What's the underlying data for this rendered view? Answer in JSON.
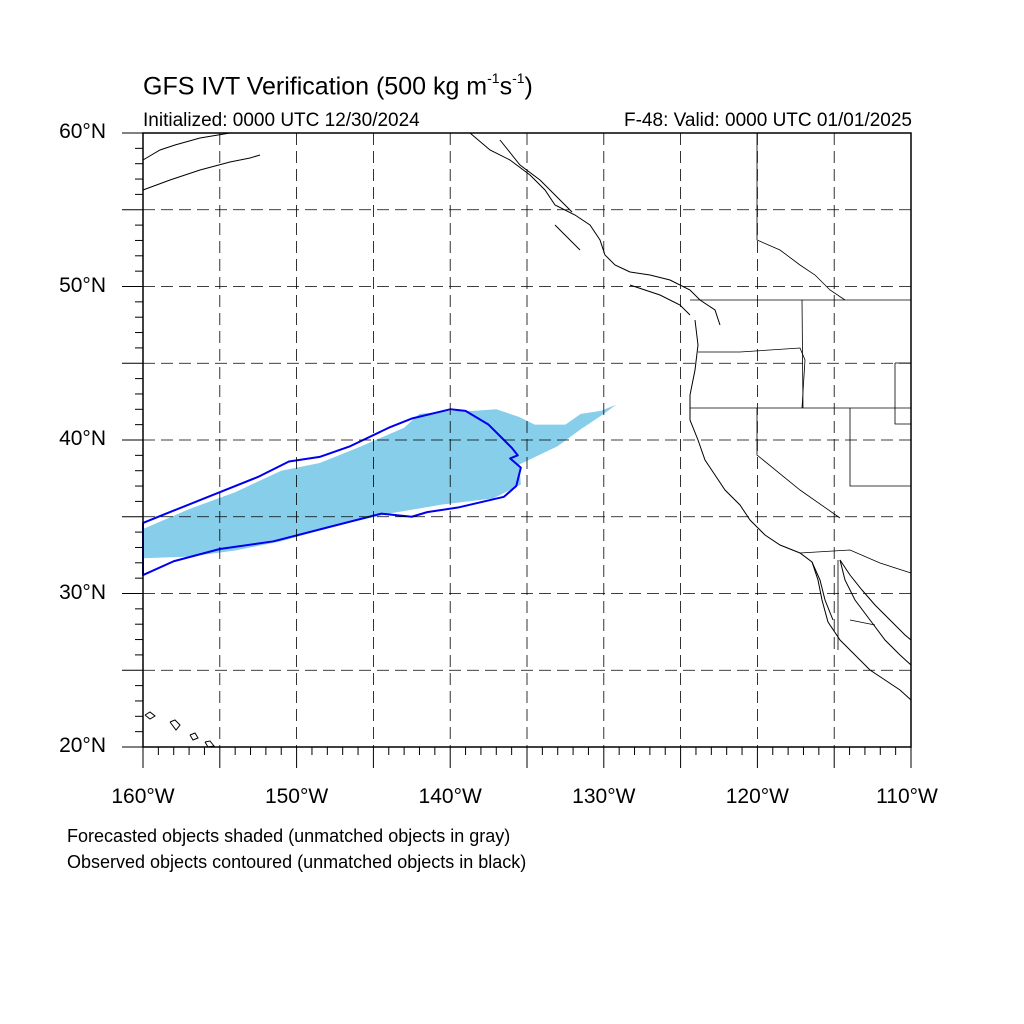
{
  "title": {
    "main": "GFS IVT Verification (500 kg m",
    "exp1": "-1",
    "mid": "s",
    "exp2": "-1",
    "end": ")"
  },
  "subtitle": {
    "initialized": "Initialized: 0000 UTC 12/30/2024",
    "valid": "F-48: Valid: 0000 UTC 01/01/2025"
  },
  "map": {
    "extent": {
      "lon_min": -160,
      "lon_max": -110,
      "lat_min": 20,
      "lat_max": 60
    },
    "lat_labels": [
      "60°N",
      "50°N",
      "40°N",
      "30°N",
      "20°N"
    ],
    "lon_labels": [
      "160°W",
      "150°W",
      "140°W",
      "130°W",
      "120°W",
      "110°W"
    ],
    "grid_lines_lat": [
      20,
      25,
      30,
      35,
      40,
      45,
      50,
      55,
      60
    ],
    "grid_lines_lon": [
      -160,
      -155,
      -150,
      -145,
      -140,
      -135,
      -130,
      -125,
      -120,
      -115,
      -110
    ],
    "forecast_object": {
      "color": "#87ceeb",
      "polygon_lonlat": [
        [
          -160,
          34.2
        ],
        [
          -157,
          35.5
        ],
        [
          -154,
          36.6
        ],
        [
          -151,
          38.0
        ],
        [
          -148.5,
          38.5
        ],
        [
          -146,
          39.5
        ],
        [
          -143,
          40.8
        ],
        [
          -142,
          41.7
        ],
        [
          -140,
          41.9
        ],
        [
          -138.5,
          41.9
        ],
        [
          -137,
          42.0
        ],
        [
          -135.5,
          41.5
        ],
        [
          -134.5,
          41.0
        ],
        [
          -132.5,
          41.0
        ],
        [
          -131.5,
          41.7
        ],
        [
          -130.2,
          41.9
        ],
        [
          -129.2,
          42.3
        ],
        [
          -130,
          41.7
        ],
        [
          -131.5,
          40.7
        ],
        [
          -133,
          39.6
        ],
        [
          -135.5,
          38.4
        ],
        [
          -135.4,
          37.1
        ],
        [
          -137.2,
          36.2
        ],
        [
          -140.5,
          35.8
        ],
        [
          -144,
          35.2
        ],
        [
          -147.5,
          34.4
        ],
        [
          -151,
          33.4
        ],
        [
          -154,
          32.8
        ],
        [
          -157,
          32.4
        ],
        [
          -160,
          32.3
        ]
      ]
    },
    "observed_object": {
      "color": "#0000ee",
      "polygon_lonlat": [
        [
          -160,
          34.6
        ],
        [
          -158,
          35.4
        ],
        [
          -155,
          36.6
        ],
        [
          -152.5,
          37.6
        ],
        [
          -150.5,
          38.6
        ],
        [
          -148.5,
          38.9
        ],
        [
          -146.5,
          39.6
        ],
        [
          -144,
          40.8
        ],
        [
          -142.5,
          41.4
        ],
        [
          -140,
          42.0
        ],
        [
          -139,
          41.9
        ],
        [
          -137.5,
          41.0
        ],
        [
          -136.5,
          40.0
        ],
        [
          -136,
          39.5
        ],
        [
          -135.6,
          39.0
        ],
        [
          -136.1,
          38.8
        ],
        [
          -135.4,
          38.2
        ],
        [
          -135.7,
          37.0
        ],
        [
          -136.5,
          36.3
        ],
        [
          -139.5,
          35.6
        ],
        [
          -141.5,
          35.3
        ],
        [
          -142.5,
          35.0
        ],
        [
          -144.5,
          35.2
        ],
        [
          -148,
          34.3
        ],
        [
          -151.5,
          33.4
        ],
        [
          -155,
          32.9
        ],
        [
          -158,
          32.1
        ],
        [
          -160,
          31.2
        ]
      ]
    }
  },
  "footnotes": {
    "line1": "Forecasted objects shaded (unmatched objects in gray)",
    "line2": "Observed objects contoured (unmatched objects in black)"
  }
}
